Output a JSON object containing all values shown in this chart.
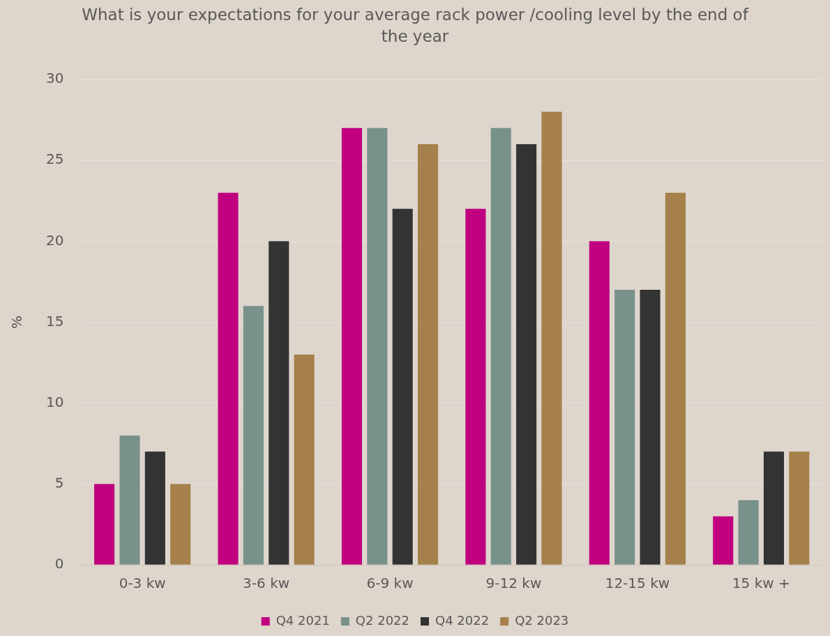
{
  "chart_data": {
    "type": "bar",
    "title": "What is your expectations for your average rack power /cooling level by the end of the year",
    "ylabel": "%",
    "categories": [
      "0-3 kw",
      "3-6 kw",
      "6-9 kw",
      "9-12 kw",
      "12-15 kw",
      "15 kw +"
    ],
    "series": [
      {
        "name": "Q4 2021",
        "color": "#c0007f",
        "values": [
          5,
          23,
          27,
          22,
          20,
          3
        ]
      },
      {
        "name": "Q2 2022",
        "color": "#78918b",
        "values": [
          8,
          16,
          27,
          27,
          17,
          4
        ]
      },
      {
        "name": "Q4 2022",
        "color": "#333333",
        "values": [
          7,
          20,
          22,
          26,
          17,
          7
        ]
      },
      {
        "name": "Q2 2023",
        "color": "#a5804a",
        "values": [
          5,
          13,
          26,
          28,
          23,
          7
        ]
      }
    ],
    "ylim": [
      0,
      30
    ],
    "yticks": [
      0,
      5,
      10,
      15,
      20,
      25,
      30
    ],
    "grid": "y",
    "legend": "bottom"
  }
}
